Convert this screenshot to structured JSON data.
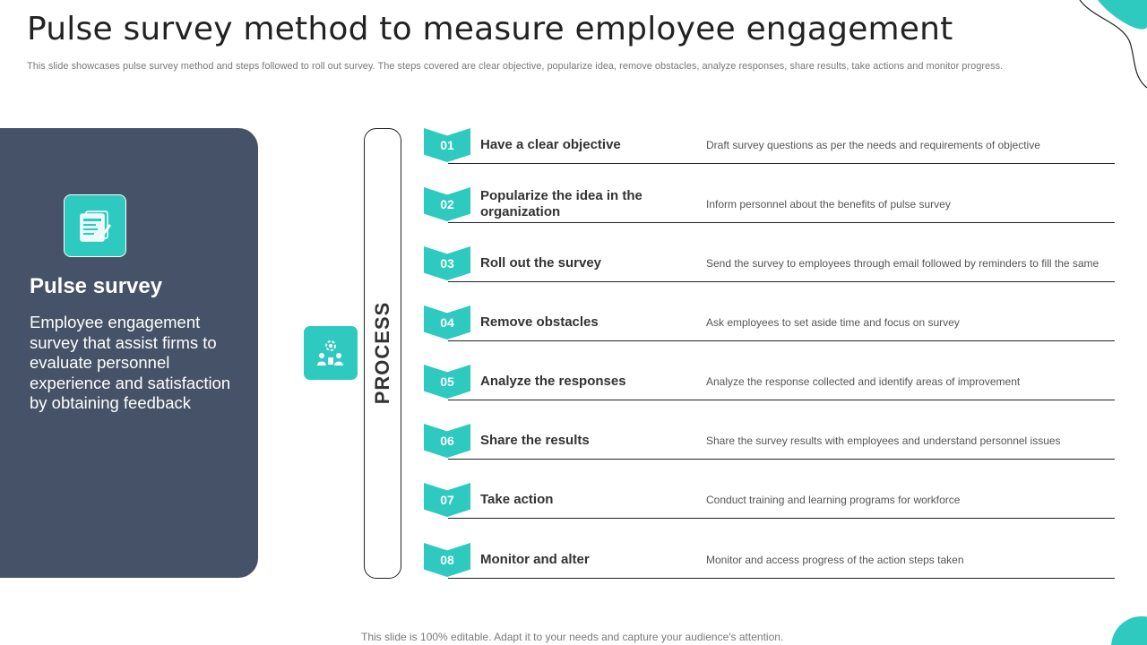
{
  "title": "Pulse survey method to measure employee engagement",
  "subtitle": "This slide showcases pulse survey method and steps followed to roll out survey.  The steps covered are clear objective, popularize idea, remove obstacles, analyze responses, share results, take actions and monitor progress.",
  "panel": {
    "icon": "survey-document-icon",
    "title": "Pulse survey",
    "description": "Employee engagement survey that assist firms to evaluate personnel experience and satisfaction by obtaining feedback"
  },
  "process": {
    "icon": "team-settings-icon",
    "label": "PROCESS"
  },
  "steps": [
    {
      "num": "01",
      "title": "Have a clear objective",
      "desc": "Draft survey questions as per the needs and requirements of objective"
    },
    {
      "num": "02",
      "title": "Popularize the idea in the organization",
      "desc": "Inform personnel about the benefits of pulse survey"
    },
    {
      "num": "03",
      "title": "Roll out the survey",
      "desc": "Send the survey to employees through email followed by reminders to fill the same"
    },
    {
      "num": "04",
      "title": "Remove obstacles",
      "desc": "Ask employees to set aside time and focus on survey"
    },
    {
      "num": "05",
      "title": "Analyze the responses",
      "desc": "Analyze  the response collected and identify areas of improvement"
    },
    {
      "num": "06",
      "title": "Share the results",
      "desc": "Share the survey results with employees and understand personnel issues"
    },
    {
      "num": "07",
      "title": "Take action",
      "desc": "Conduct training and learning programs for workforce"
    },
    {
      "num": "08",
      "title": "Monitor and alter",
      "desc": "Monitor and access progress of the action steps taken"
    }
  ],
  "footer": "This slide is 100% editable. Adapt it to your needs and capture your audience's attention.",
  "colors": {
    "accent": "#2ec9bf",
    "panel": "#465267",
    "text": "#333333"
  }
}
